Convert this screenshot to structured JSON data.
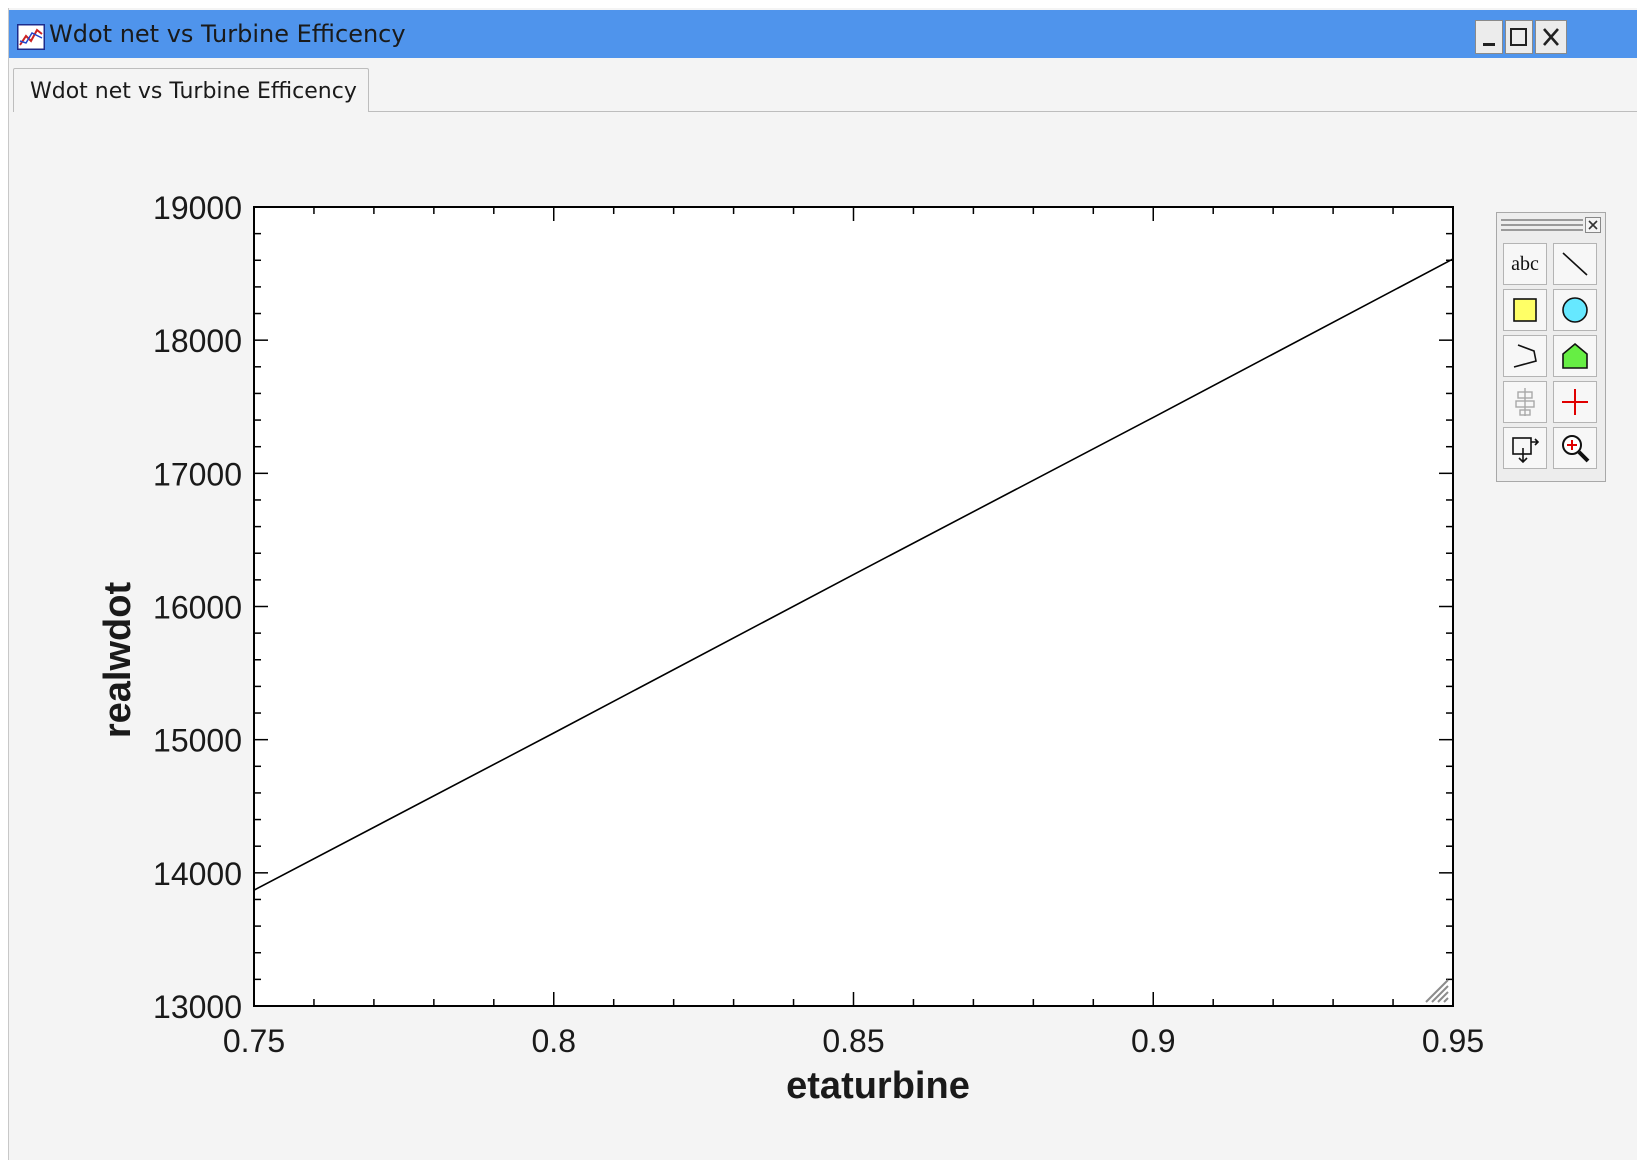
{
  "window": {
    "title": "Wdot net vs Turbine Efficency"
  },
  "tab": {
    "label": "Wdot net vs Turbine Efficency"
  },
  "chart_data": {
    "type": "line",
    "xlabel": "etaturbine",
    "ylabel": "realwdot",
    "xlim": [
      0.75,
      0.95
    ],
    "ylim": [
      13000,
      19000
    ],
    "xticks": [
      "0.75",
      "0.8",
      "0.85",
      "0.9",
      "0.95"
    ],
    "yticks": [
      "13000",
      "14000",
      "15000",
      "16000",
      "17000",
      "18000",
      "19000"
    ],
    "series": [
      {
        "x": [
          0.75,
          0.8,
          0.85,
          0.9,
          0.95
        ],
        "y": [
          13870,
          15050,
          16240,
          17420,
          18610
        ]
      }
    ],
    "grid": false,
    "line_color": "#000000"
  },
  "toolbox": {
    "tools": [
      "text-tool",
      "line-tool",
      "rectangle-tool",
      "ellipse-tool",
      "polyline-tool",
      "polygon-tool",
      "align-tool",
      "crosshair-tool",
      "copy-plot-tool",
      "zoom-tool"
    ],
    "text_tool_label": "abc"
  },
  "colors": {
    "titlebar": "#4f94ec",
    "rectangle_fill": "#ffff66",
    "ellipse_fill": "#66e8ff",
    "polygon_fill": "#66ee44",
    "crosshair": "#e00000"
  }
}
